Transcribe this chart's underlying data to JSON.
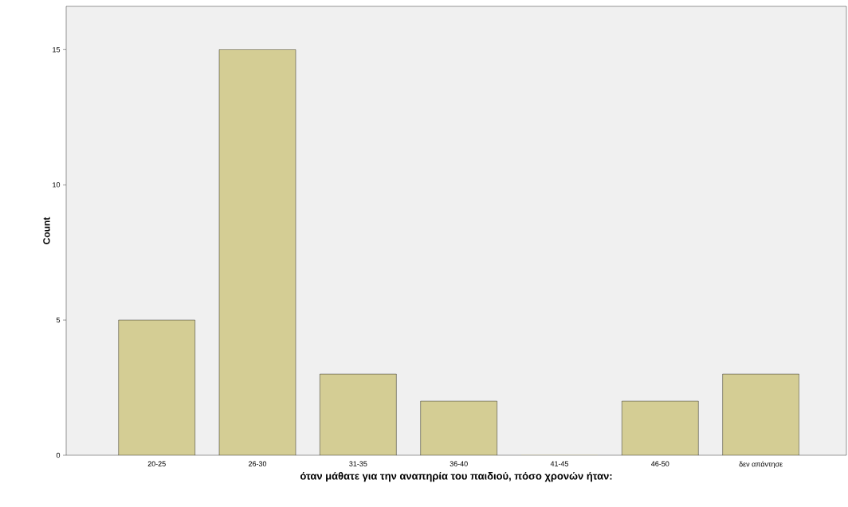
{
  "chart_data": {
    "type": "bar",
    "xlabel": "όταν μάθατε για την αναπηρία του παιδιού, πόσο χρονών ήταν:",
    "ylabel": "Count",
    "categories": [
      "20-25",
      "26-30",
      "31-35",
      "36-40",
      "41-45",
      "46-50",
      "δεν απάντησε"
    ],
    "values": [
      5,
      15,
      3,
      2,
      0,
      2,
      3
    ],
    "color": "#d4cd94",
    "ylim": [
      0,
      16.6
    ],
    "yticks": [
      0,
      5,
      10,
      15
    ],
    "grid": false
  }
}
